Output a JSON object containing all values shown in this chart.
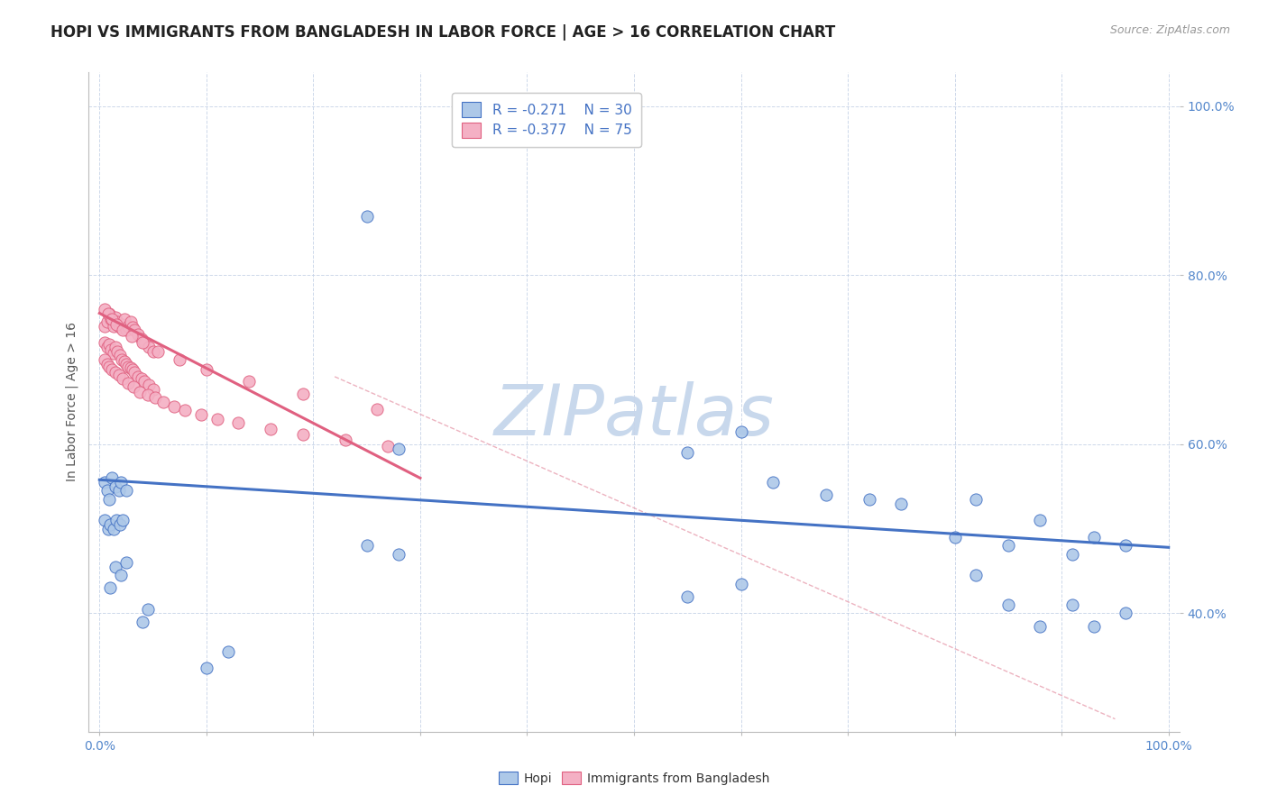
{
  "title": "HOPI VS IMMIGRANTS FROM BANGLADESH IN LABOR FORCE | AGE > 16 CORRELATION CHART",
  "source_text": "Source: ZipAtlas.com",
  "ylabel": "In Labor Force | Age > 16",
  "watermark": "ZIPatlas",
  "legend_r1": "R = -0.271",
  "legend_n1": "N = 30",
  "legend_r2": "R = -0.377",
  "legend_n2": "N = 75",
  "hopi_color": "#adc8e8",
  "hopi_edge_color": "#4472c4",
  "bangladesh_color": "#f4b0c4",
  "bangladesh_edge_color": "#e06080",
  "hopi_scatter_x": [
    0.005,
    0.007,
    0.009,
    0.012,
    0.015,
    0.018,
    0.02,
    0.025,
    0.005,
    0.008,
    0.01,
    0.013,
    0.016,
    0.019,
    0.022,
    0.25,
    0.28,
    0.55,
    0.6,
    0.63,
    0.68,
    0.72,
    0.75,
    0.8,
    0.82,
    0.85,
    0.88,
    0.91,
    0.93,
    0.96
  ],
  "hopi_scatter_y": [
    0.555,
    0.545,
    0.535,
    0.56,
    0.55,
    0.545,
    0.555,
    0.545,
    0.51,
    0.5,
    0.505,
    0.5,
    0.51,
    0.505,
    0.51,
    0.87,
    0.595,
    0.59,
    0.615,
    0.555,
    0.54,
    0.535,
    0.53,
    0.49,
    0.535,
    0.48,
    0.51,
    0.47,
    0.49,
    0.48
  ],
  "hopi_scatter_x2": [
    0.01,
    0.015,
    0.02,
    0.025,
    0.04,
    0.045,
    0.1,
    0.12,
    0.25,
    0.28,
    0.55,
    0.6,
    0.82,
    0.85,
    0.88,
    0.91,
    0.93,
    0.96
  ],
  "hopi_scatter_y2": [
    0.43,
    0.455,
    0.445,
    0.46,
    0.39,
    0.405,
    0.335,
    0.355,
    0.48,
    0.47,
    0.42,
    0.435,
    0.445,
    0.41,
    0.385,
    0.41,
    0.385,
    0.4
  ],
  "bangladesh_scatter_x": [
    0.005,
    0.007,
    0.009,
    0.011,
    0.013,
    0.015,
    0.017,
    0.019,
    0.021,
    0.023,
    0.025,
    0.027,
    0.029,
    0.031,
    0.033,
    0.036,
    0.039,
    0.042,
    0.046,
    0.05,
    0.005,
    0.007,
    0.009,
    0.011,
    0.013,
    0.015,
    0.017,
    0.019,
    0.021,
    0.023,
    0.025,
    0.027,
    0.029,
    0.031,
    0.033,
    0.036,
    0.039,
    0.042,
    0.046,
    0.05,
    0.005,
    0.007,
    0.009,
    0.012,
    0.015,
    0.018,
    0.022,
    0.027,
    0.032,
    0.038,
    0.045,
    0.052,
    0.06,
    0.07,
    0.08,
    0.095,
    0.11,
    0.13,
    0.16,
    0.19,
    0.23,
    0.27,
    0.005,
    0.008,
    0.012,
    0.016,
    0.022,
    0.03,
    0.04,
    0.055,
    0.075,
    0.1,
    0.14,
    0.19,
    0.26
  ],
  "bangladesh_scatter_y": [
    0.74,
    0.745,
    0.755,
    0.748,
    0.74,
    0.75,
    0.745,
    0.738,
    0.742,
    0.748,
    0.735,
    0.74,
    0.745,
    0.738,
    0.735,
    0.73,
    0.725,
    0.72,
    0.715,
    0.71,
    0.72,
    0.715,
    0.718,
    0.712,
    0.708,
    0.715,
    0.71,
    0.705,
    0.7,
    0.698,
    0.695,
    0.692,
    0.69,
    0.688,
    0.685,
    0.68,
    0.678,
    0.675,
    0.67,
    0.665,
    0.7,
    0.695,
    0.692,
    0.688,
    0.685,
    0.682,
    0.678,
    0.672,
    0.668,
    0.662,
    0.658,
    0.655,
    0.65,
    0.645,
    0.64,
    0.635,
    0.63,
    0.625,
    0.618,
    0.612,
    0.605,
    0.598,
    0.76,
    0.755,
    0.748,
    0.742,
    0.735,
    0.728,
    0.72,
    0.71,
    0.7,
    0.688,
    0.675,
    0.66,
    0.642
  ],
  "hopi_trend_x": [
    0.0,
    1.0
  ],
  "hopi_trend_y": [
    0.558,
    0.478
  ],
  "bangladesh_trend_x": [
    0.0,
    0.3
  ],
  "bangladesh_trend_y": [
    0.755,
    0.56
  ],
  "dashed_line_x": [
    0.22,
    0.95
  ],
  "dashed_line_y": [
    0.68,
    0.275
  ],
  "xlim": [
    -0.01,
    1.01
  ],
  "ylim": [
    0.26,
    1.04
  ],
  "x_ticks": [
    0.0,
    0.1,
    0.2,
    0.3,
    0.4,
    0.5,
    0.6,
    0.7,
    0.8,
    0.9,
    1.0
  ],
  "x_tick_labels": [
    "0.0%",
    "",
    "",
    "",
    "",
    "",
    "",
    "",
    "",
    "",
    "100.0%"
  ],
  "y_ticks": [
    0.4,
    0.6,
    0.8,
    1.0
  ],
  "y_tick_labels": [
    "40.0%",
    "60.0%",
    "80.0%",
    "100.0%"
  ],
  "background_color": "#ffffff",
  "grid_color": "#c8d4e8",
  "watermark_color": "#c8d8ec",
  "title_fontsize": 12,
  "axis_label_fontsize": 10,
  "tick_fontsize": 10,
  "legend_fontsize": 11
}
